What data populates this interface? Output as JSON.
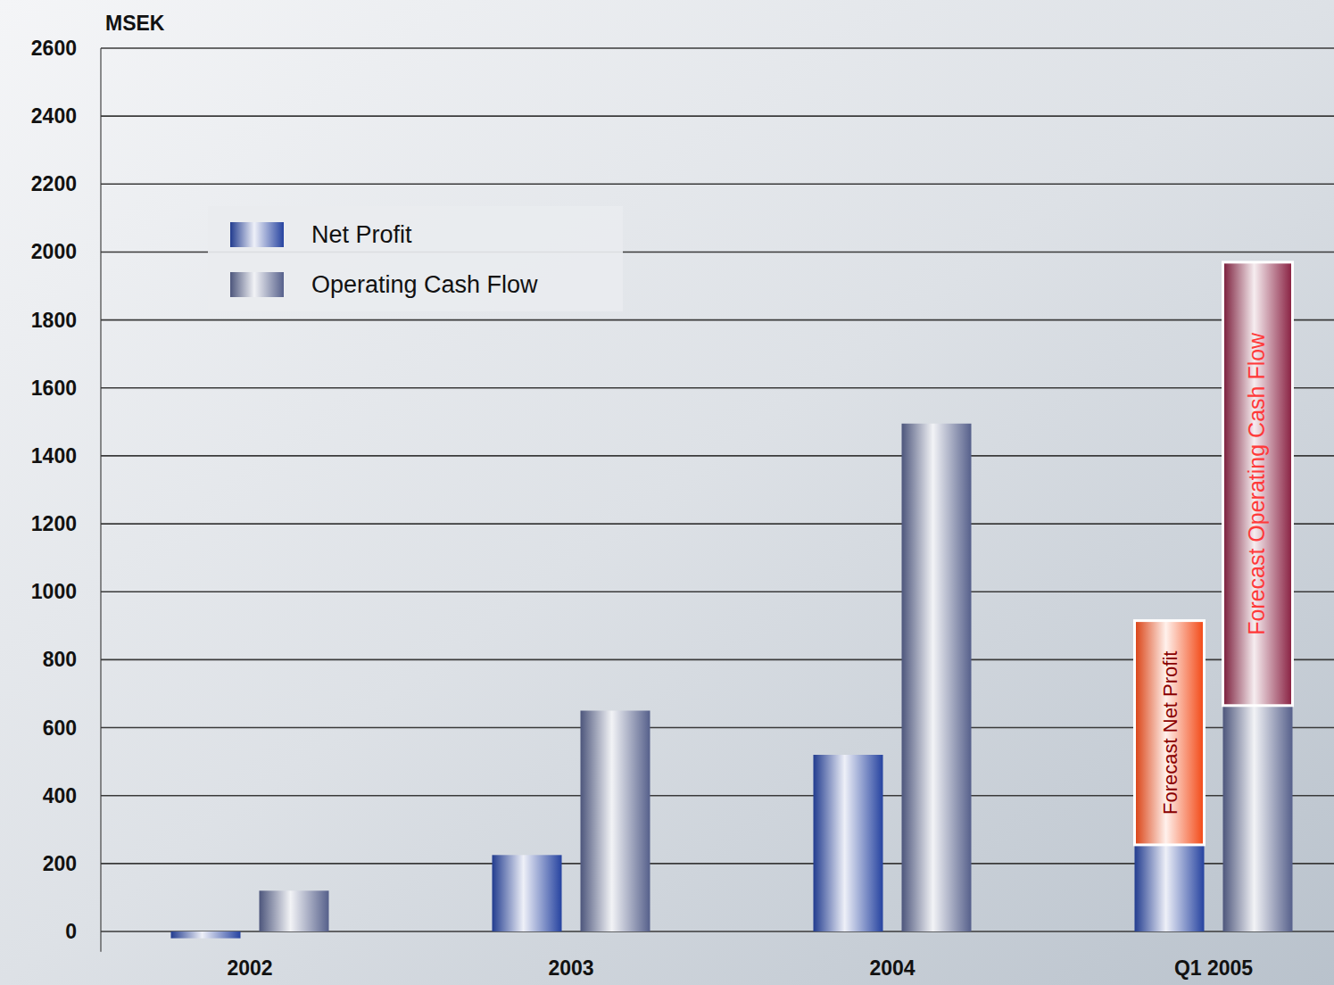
{
  "chart_data": {
    "type": "bar",
    "y_label": "MSEK",
    "categories": [
      "2002",
      "2003",
      "2004",
      "Q1 2005"
    ],
    "series": [
      {
        "name": "Net Profit",
        "color": "#2846a8",
        "values": [
          -20,
          225,
          520,
          255
        ]
      },
      {
        "name": "Operating Cash Flow",
        "color": "#5b6592",
        "values": [
          120,
          650,
          1495,
          665
        ]
      }
    ],
    "forecast": [
      {
        "name": "Forecast Net Profit",
        "color": "#ff4a14",
        "values": [
          null,
          null,
          null,
          660
        ],
        "stacked": true
      },
      {
        "name": "Forecast Operating Cash Flow",
        "color": "#8e1e42",
        "values": [
          null,
          null,
          null,
          1305
        ],
        "stacked": true
      }
    ],
    "ylim": [
      -60,
      2600
    ],
    "yticks": [
      0,
      200,
      400,
      600,
      800,
      1000,
      1200,
      1400,
      1600,
      1800,
      2000,
      2200,
      2400,
      2600
    ],
    "grid": true,
    "legend": "upper left"
  }
}
